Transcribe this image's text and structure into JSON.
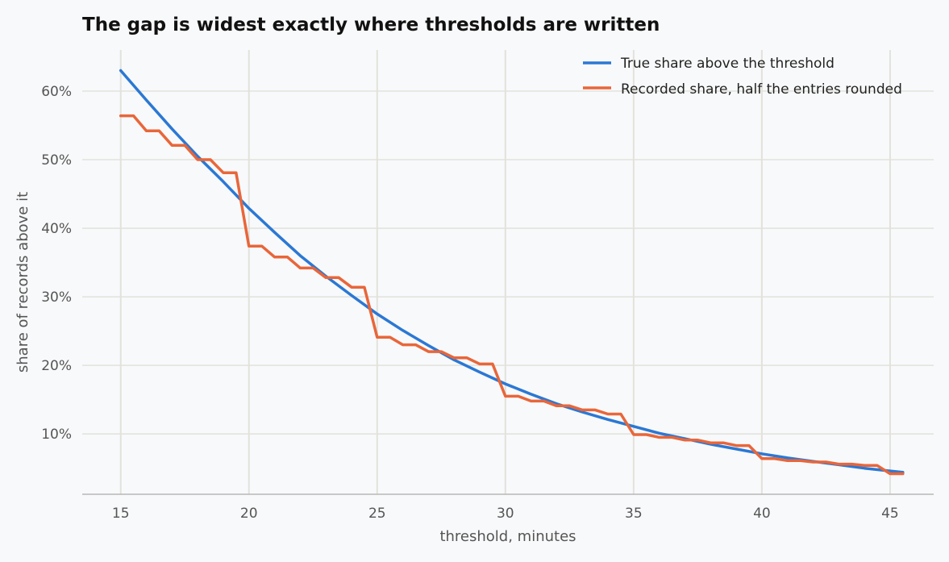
{
  "chart_data": {
    "type": "line",
    "title": "The gap is widest exactly where thresholds are written",
    "xlabel": "threshold, minutes",
    "ylabel": "share of records above it",
    "xlim": [
      13.5,
      46.7
    ],
    "ylim": [
      1.2,
      66.0
    ],
    "xticks": [
      15,
      20,
      25,
      30,
      35,
      40,
      45
    ],
    "yticks": [
      10,
      20,
      30,
      40,
      50,
      60
    ],
    "ytick_suffix": "%",
    "grid": "x and y",
    "legend_position": "top-right",
    "series": [
      {
        "name": "True share above the threshold",
        "color": "#2b78d4",
        "x": [
          15,
          16,
          17,
          18,
          19,
          20,
          21,
          22,
          23,
          24,
          25,
          26,
          27,
          28,
          29,
          30,
          31,
          32,
          33,
          34,
          35,
          36,
          37,
          38,
          39,
          40,
          41,
          42,
          43,
          44,
          45,
          45.5
        ],
        "values": [
          63.0,
          58.7,
          54.5,
          50.5,
          46.8,
          42.9,
          39.4,
          36.0,
          33.0,
          30.2,
          27.5,
          25.1,
          22.9,
          20.8,
          19.0,
          17.3,
          15.8,
          14.4,
          13.2,
          12.1,
          11.1,
          10.1,
          9.3,
          8.5,
          7.8,
          7.1,
          6.5,
          6.0,
          5.5,
          5.0,
          4.6,
          4.4
        ]
      },
      {
        "name": "Recorded share, half the entries rounded",
        "color": "#e8663a",
        "x": [
          15,
          15.5,
          16,
          16.5,
          17,
          17.5,
          18,
          18.5,
          19,
          19.5,
          20,
          20.5,
          21,
          21.5,
          22,
          22.5,
          23,
          23.5,
          24,
          24.5,
          25,
          25.5,
          26,
          26.5,
          27,
          27.5,
          28,
          28.5,
          29,
          29.5,
          30,
          30.5,
          31,
          31.5,
          32,
          32.5,
          33,
          33.5,
          34,
          34.5,
          35,
          35.5,
          36,
          36.5,
          37,
          37.5,
          38,
          38.5,
          39,
          39.5,
          40,
          40.5,
          41,
          41.5,
          42,
          42.5,
          43,
          43.5,
          44,
          44.5,
          45,
          45.5
        ],
        "values": [
          56.4,
          56.4,
          54.2,
          54.2,
          52.1,
          52.1,
          50.0,
          50.0,
          48.1,
          48.1,
          37.4,
          37.4,
          35.8,
          35.8,
          34.2,
          34.2,
          32.8,
          32.8,
          31.4,
          31.4,
          24.1,
          24.1,
          23.0,
          23.0,
          22.0,
          22.0,
          21.1,
          21.1,
          20.2,
          20.2,
          15.5,
          15.5,
          14.8,
          14.8,
          14.1,
          14.1,
          13.5,
          13.5,
          12.9,
          12.9,
          9.9,
          9.9,
          9.5,
          9.5,
          9.1,
          9.1,
          8.7,
          8.7,
          8.3,
          8.3,
          6.4,
          6.4,
          6.1,
          6.1,
          5.9,
          5.9,
          5.6,
          5.6,
          5.4,
          5.4,
          4.2,
          4.2
        ]
      }
    ]
  }
}
